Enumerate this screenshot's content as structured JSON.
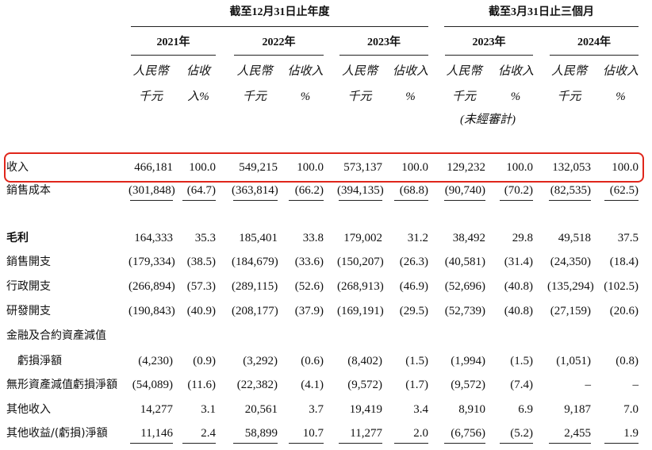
{
  "header": {
    "groups": [
      {
        "title": "截至12月31日止年度",
        "years": [
          "2021年",
          "2022年",
          "2023年"
        ]
      },
      {
        "title": "截至3月31日止三個月",
        "years": [
          "2023年",
          "2024年"
        ]
      }
    ],
    "units": [
      [
        "人民幣",
        "千元"
      ],
      [
        "佔收",
        "入%"
      ],
      [
        "人民幣",
        "千元"
      ],
      [
        "佔收入",
        "%"
      ],
      [
        "人民幣",
        "千元"
      ],
      [
        "佔收入",
        "%"
      ],
      [
        "人民幣",
        "千元"
      ],
      [
        "佔收入",
        "%"
      ],
      [
        "人民幣",
        "千元"
      ],
      [
        "佔收入",
        "%"
      ]
    ],
    "note": "(未經審計)"
  },
  "rows": [
    {
      "label": "收入",
      "values": [
        "466,181",
        "100.0",
        "549,215",
        "100.0",
        "573,137",
        "100.0",
        "129,232",
        "100.0",
        "132,053",
        "100.0"
      ]
    },
    {
      "label": "銷售成本",
      "values": [
        "(301,848)",
        "(64.7)",
        "(363,814)",
        "(66.2)",
        "(394,135)",
        "(68.8)",
        "(90,740)",
        "(70.2)",
        "(82,535)",
        "(62.5)"
      ]
    },
    {
      "label": "毛利",
      "values": [
        "164,333",
        "35.3",
        "185,401",
        "33.8",
        "179,002",
        "31.2",
        "38,492",
        "29.8",
        "49,518",
        "37.5"
      ]
    },
    {
      "label": "銷售開支",
      "values": [
        "(179,334)",
        "(38.5)",
        "(184,679)",
        "(33.6)",
        "(150,207)",
        "(26.3)",
        "(40,581)",
        "(31.4)",
        "(24,350)",
        "(18.4)"
      ]
    },
    {
      "label": "行政開支",
      "values": [
        "(266,894)",
        "(57.3)",
        "(289,115)",
        "(52.6)",
        "(268,913)",
        "(46.9)",
        "(52,696)",
        "(40.8)",
        "(135,294)",
        "(102.5)"
      ]
    },
    {
      "label": "研發開支",
      "values": [
        "(190,843)",
        "(40.9)",
        "(208,177)",
        "(37.9)",
        "(169,191)",
        "(29.5)",
        "(52,739)",
        "(40.8)",
        "(27,159)",
        "(20.6)"
      ]
    },
    {
      "label": "金融及合約資產減值",
      "values": []
    },
    {
      "label": "虧損淨額",
      "values": [
        "(4,230)",
        "(0.9)",
        "(3,292)",
        "(0.6)",
        "(8,402)",
        "(1.5)",
        "(1,994)",
        "(1.5)",
        "(1,051)",
        "(0.8)"
      ]
    },
    {
      "label": "無形資產減值虧損淨額",
      "values": [
        "(54,089)",
        "(11.6)",
        "(22,382)",
        "(4.1)",
        "(9,572)",
        "(1.7)",
        "(9,572)",
        "(7.4)",
        "–",
        "–"
      ]
    },
    {
      "label": "其他收入",
      "values": [
        "14,277",
        "3.1",
        "20,561",
        "3.7",
        "19,419",
        "3.4",
        "8,910",
        "6.9",
        "9,187",
        "7.0"
      ]
    },
    {
      "label": "其他收益/(虧損)淨額",
      "values": [
        "11,146",
        "2.4",
        "58,899",
        "10.7",
        "11,277",
        "2.0",
        "(6,756)",
        "(5.2)",
        "2,455",
        "1.9"
      ]
    }
  ]
}
